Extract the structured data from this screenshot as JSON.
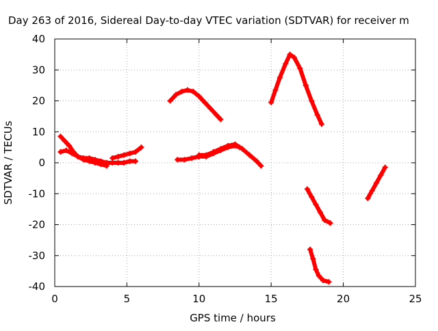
{
  "chart_data": {
    "type": "scatter",
    "title": "Day 263 of 2016, Sidereal Day-to-day VTEC variation (SDTVAR) for receiver m",
    "xlabel": "GPS time / hours",
    "ylabel": "SDTVAR / TECUs",
    "xlim": [
      0,
      25
    ],
    "ylim": [
      -40,
      40
    ],
    "xticks": [
      0,
      5,
      10,
      15,
      20,
      25
    ],
    "yticks": [
      -40,
      -30,
      -20,
      -10,
      0,
      10,
      20,
      30,
      40
    ],
    "grid": true,
    "legend": "none",
    "marker": "plus",
    "color": "#ff0000",
    "series": [
      {
        "x": [
          0.4,
          0.7,
          1.0,
          1.3,
          1.6,
          2.0,
          2.4,
          2.8,
          3.2,
          3.6
        ],
        "y": [
          8.5,
          7.0,
          5.5,
          3.5,
          2.0,
          1.0,
          0.5,
          0.0,
          -0.5,
          -1.0
        ]
      },
      {
        "x": [
          0.4,
          0.8,
          1.2,
          1.6,
          2.0,
          2.4,
          2.8,
          3.2,
          3.6,
          4.0,
          4.4,
          4.8,
          5.2,
          5.6
        ],
        "y": [
          3.5,
          4.0,
          3.0,
          2.0,
          1.5,
          1.5,
          1.0,
          0.5,
          0.0,
          0.0,
          0.0,
          0.0,
          0.5,
          0.5
        ]
      },
      {
        "x": [
          4.0,
          4.4,
          4.8,
          5.2,
          5.6,
          6.0
        ],
        "y": [
          1.5,
          2.0,
          2.5,
          3.0,
          3.5,
          5.0
        ]
      },
      {
        "x": [
          8.0,
          8.4,
          8.8,
          9.2,
          9.6,
          10.0,
          10.4,
          10.8,
          11.2,
          11.5
        ],
        "y": [
          20.0,
          22.0,
          23.0,
          23.5,
          23.0,
          21.5,
          19.5,
          17.5,
          15.5,
          14.0
        ]
      },
      {
        "x": [
          8.5,
          9.0,
          9.5,
          10.0,
          10.5,
          11.0,
          11.5,
          12.0,
          12.5,
          12.8
        ],
        "y": [
          1.0,
          1.0,
          1.5,
          2.0,
          2.0,
          3.0,
          4.0,
          5.0,
          5.5,
          5.0
        ]
      },
      {
        "x": [
          10.0,
          10.5,
          11.0,
          11.5,
          12.0,
          12.5,
          13.0,
          13.5,
          14.0,
          14.3
        ],
        "y": [
          2.5,
          2.5,
          3.5,
          4.5,
          5.5,
          6.0,
          4.5,
          2.5,
          0.5,
          -1.0
        ]
      },
      {
        "x": [
          15.0,
          15.3,
          15.6,
          16.0,
          16.3,
          16.6,
          17.0,
          17.4,
          17.8,
          18.2,
          18.5
        ],
        "y": [
          19.5,
          23.5,
          27.5,
          32.0,
          35.0,
          34.0,
          30.5,
          25.0,
          20.0,
          15.5,
          12.5
        ]
      },
      {
        "x": [
          17.5,
          17.8,
          18.1,
          18.4,
          18.7,
          19.1
        ],
        "y": [
          -8.5,
          -11.0,
          -13.5,
          -16.0,
          -18.5,
          -19.5
        ]
      },
      {
        "x": [
          17.7,
          17.9,
          18.1,
          18.3,
          18.6,
          19.0
        ],
        "y": [
          -28.0,
          -31.0,
          -34.5,
          -36.5,
          -38.0,
          -38.5
        ]
      },
      {
        "x": [
          21.7,
          22.0,
          22.3,
          22.6,
          22.9
        ],
        "y": [
          -11.5,
          -9.0,
          -6.5,
          -4.0,
          -1.5
        ]
      }
    ]
  }
}
